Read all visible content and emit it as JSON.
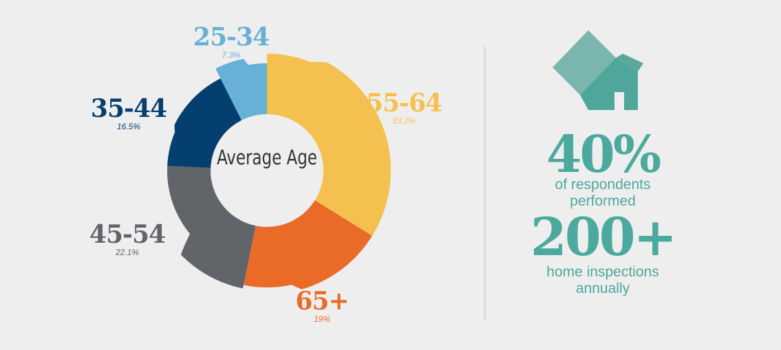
{
  "chart_data": {
    "type": "pie",
    "title": "Average Age",
    "categories": [
      "25-34",
      "55-64",
      "65+",
      "45-54",
      "35-44"
    ],
    "values": [
      7.3,
      33.2,
      19,
      22.1,
      16.5
    ],
    "value_labels": [
      "7.3%",
      "33.2%",
      "19%",
      "22.1%",
      "16.5%"
    ],
    "colors": [
      "#67b0d6",
      "#f4c150",
      "#e96b27",
      "#616468",
      "#053f6f"
    ]
  },
  "stats": [
    {
      "number": "40%",
      "caption_line1": "of respondents",
      "caption_line2": "performed"
    },
    {
      "number": "200+",
      "caption_line1": "home inspections",
      "caption_line2": "annually"
    }
  ],
  "icons": {
    "house": "house-icon"
  },
  "colors": {
    "background": "#eeeeee",
    "accent": "#4ca99d",
    "house_roof": "#7ab5ae",
    "house_wall": "#4fa79c",
    "divider": "#d9d9d9"
  }
}
